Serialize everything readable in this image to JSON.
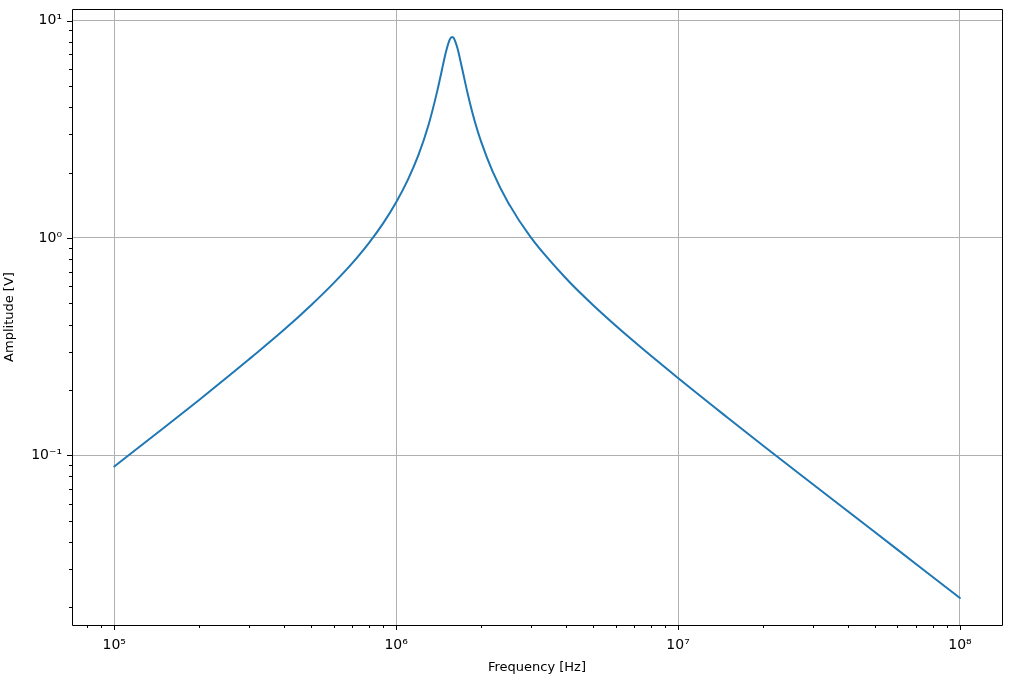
{
  "chart_data": {
    "type": "line",
    "xlabel": "Frequency [Hz]",
    "ylabel": "Amplitude [V]",
    "log": "xy",
    "grid": true,
    "color": "#1f77b4",
    "x": [
      100000,
      150000,
      200000,
      300000,
      400000,
      500000,
      600000,
      700000,
      800000,
      900000,
      1000000,
      1100000,
      1200000,
      1300000,
      1400000,
      1450000,
      1500000,
      1550000,
      1580000,
      1600000,
      1650000,
      1700000,
      1800000,
      1900000,
      2000000,
      2200000,
      2500000,
      3000000,
      4000000,
      5000000,
      7000000,
      10000000,
      15000000,
      20000000,
      30000000,
      50000000,
      70000000,
      100000000
    ],
    "values": [
      0.089,
      0.134,
      0.18,
      0.276,
      0.378,
      0.492,
      0.62,
      0.768,
      0.947,
      1.17,
      1.46,
      1.85,
      2.41,
      3.28,
      4.76,
      5.85,
      7.13,
      8.19,
      8.4,
      8.31,
      7.45,
      6.31,
      4.52,
      3.44,
      2.78,
      2.02,
      1.45,
      1.01,
      0.653,
      0.491,
      0.333,
      0.227,
      0.149,
      0.111,
      0.0739,
      0.0443,
      0.0316,
      0.0221
    ],
    "xlim": [
      70800,
      141000000
    ],
    "ylim": [
      0.0166,
      11.3
    ],
    "xticks": [
      {
        "value": 80000,
        "label": null
      },
      {
        "value": 90000,
        "label": null
      },
      {
        "value": 100000,
        "label": "10⁵"
      },
      {
        "value": 200000,
        "label": null
      },
      {
        "value": 300000,
        "label": null
      },
      {
        "value": 400000,
        "label": null
      },
      {
        "value": 500000,
        "label": null
      },
      {
        "value": 600000,
        "label": null
      },
      {
        "value": 700000,
        "label": null
      },
      {
        "value": 800000,
        "label": null
      },
      {
        "value": 900000,
        "label": null
      },
      {
        "value": 1000000,
        "label": "10⁶"
      },
      {
        "value": 2000000,
        "label": null
      },
      {
        "value": 3000000,
        "label": null
      },
      {
        "value": 4000000,
        "label": null
      },
      {
        "value": 5000000,
        "label": null
      },
      {
        "value": 6000000,
        "label": null
      },
      {
        "value": 7000000,
        "label": null
      },
      {
        "value": 8000000,
        "label": null
      },
      {
        "value": 9000000,
        "label": null
      },
      {
        "value": 10000000,
        "label": "10⁷"
      },
      {
        "value": 20000000,
        "label": null
      },
      {
        "value": 30000000,
        "label": null
      },
      {
        "value": 40000000,
        "label": null
      },
      {
        "value": 50000000,
        "label": null
      },
      {
        "value": 60000000,
        "label": null
      },
      {
        "value": 70000000,
        "label": null
      },
      {
        "value": 80000000,
        "label": null
      },
      {
        "value": 90000000,
        "label": null
      },
      {
        "value": 100000000,
        "label": "10⁸"
      }
    ],
    "yticks": [
      {
        "value": 0.02,
        "label": null
      },
      {
        "value": 0.03,
        "label": null
      },
      {
        "value": 0.04,
        "label": null
      },
      {
        "value": 0.05,
        "label": null
      },
      {
        "value": 0.06,
        "label": null
      },
      {
        "value": 0.07,
        "label": null
      },
      {
        "value": 0.08,
        "label": null
      },
      {
        "value": 0.09,
        "label": null
      },
      {
        "value": 0.1,
        "label": "10⁻¹"
      },
      {
        "value": 0.2,
        "label": null
      },
      {
        "value": 0.3,
        "label": null
      },
      {
        "value": 0.4,
        "label": null
      },
      {
        "value": 0.5,
        "label": null
      },
      {
        "value": 0.6,
        "label": null
      },
      {
        "value": 0.7,
        "label": null
      },
      {
        "value": 0.8,
        "label": null
      },
      {
        "value": 0.9,
        "label": null
      },
      {
        "value": 1,
        "label": "10⁰"
      },
      {
        "value": 2,
        "label": null
      },
      {
        "value": 3,
        "label": null
      },
      {
        "value": 4,
        "label": null
      },
      {
        "value": 5,
        "label": null
      },
      {
        "value": 6,
        "label": null
      },
      {
        "value": 7,
        "label": null
      },
      {
        "value": 8,
        "label": null
      },
      {
        "value": 9,
        "label": null
      },
      {
        "value": 10,
        "label": "10¹"
      }
    ]
  }
}
